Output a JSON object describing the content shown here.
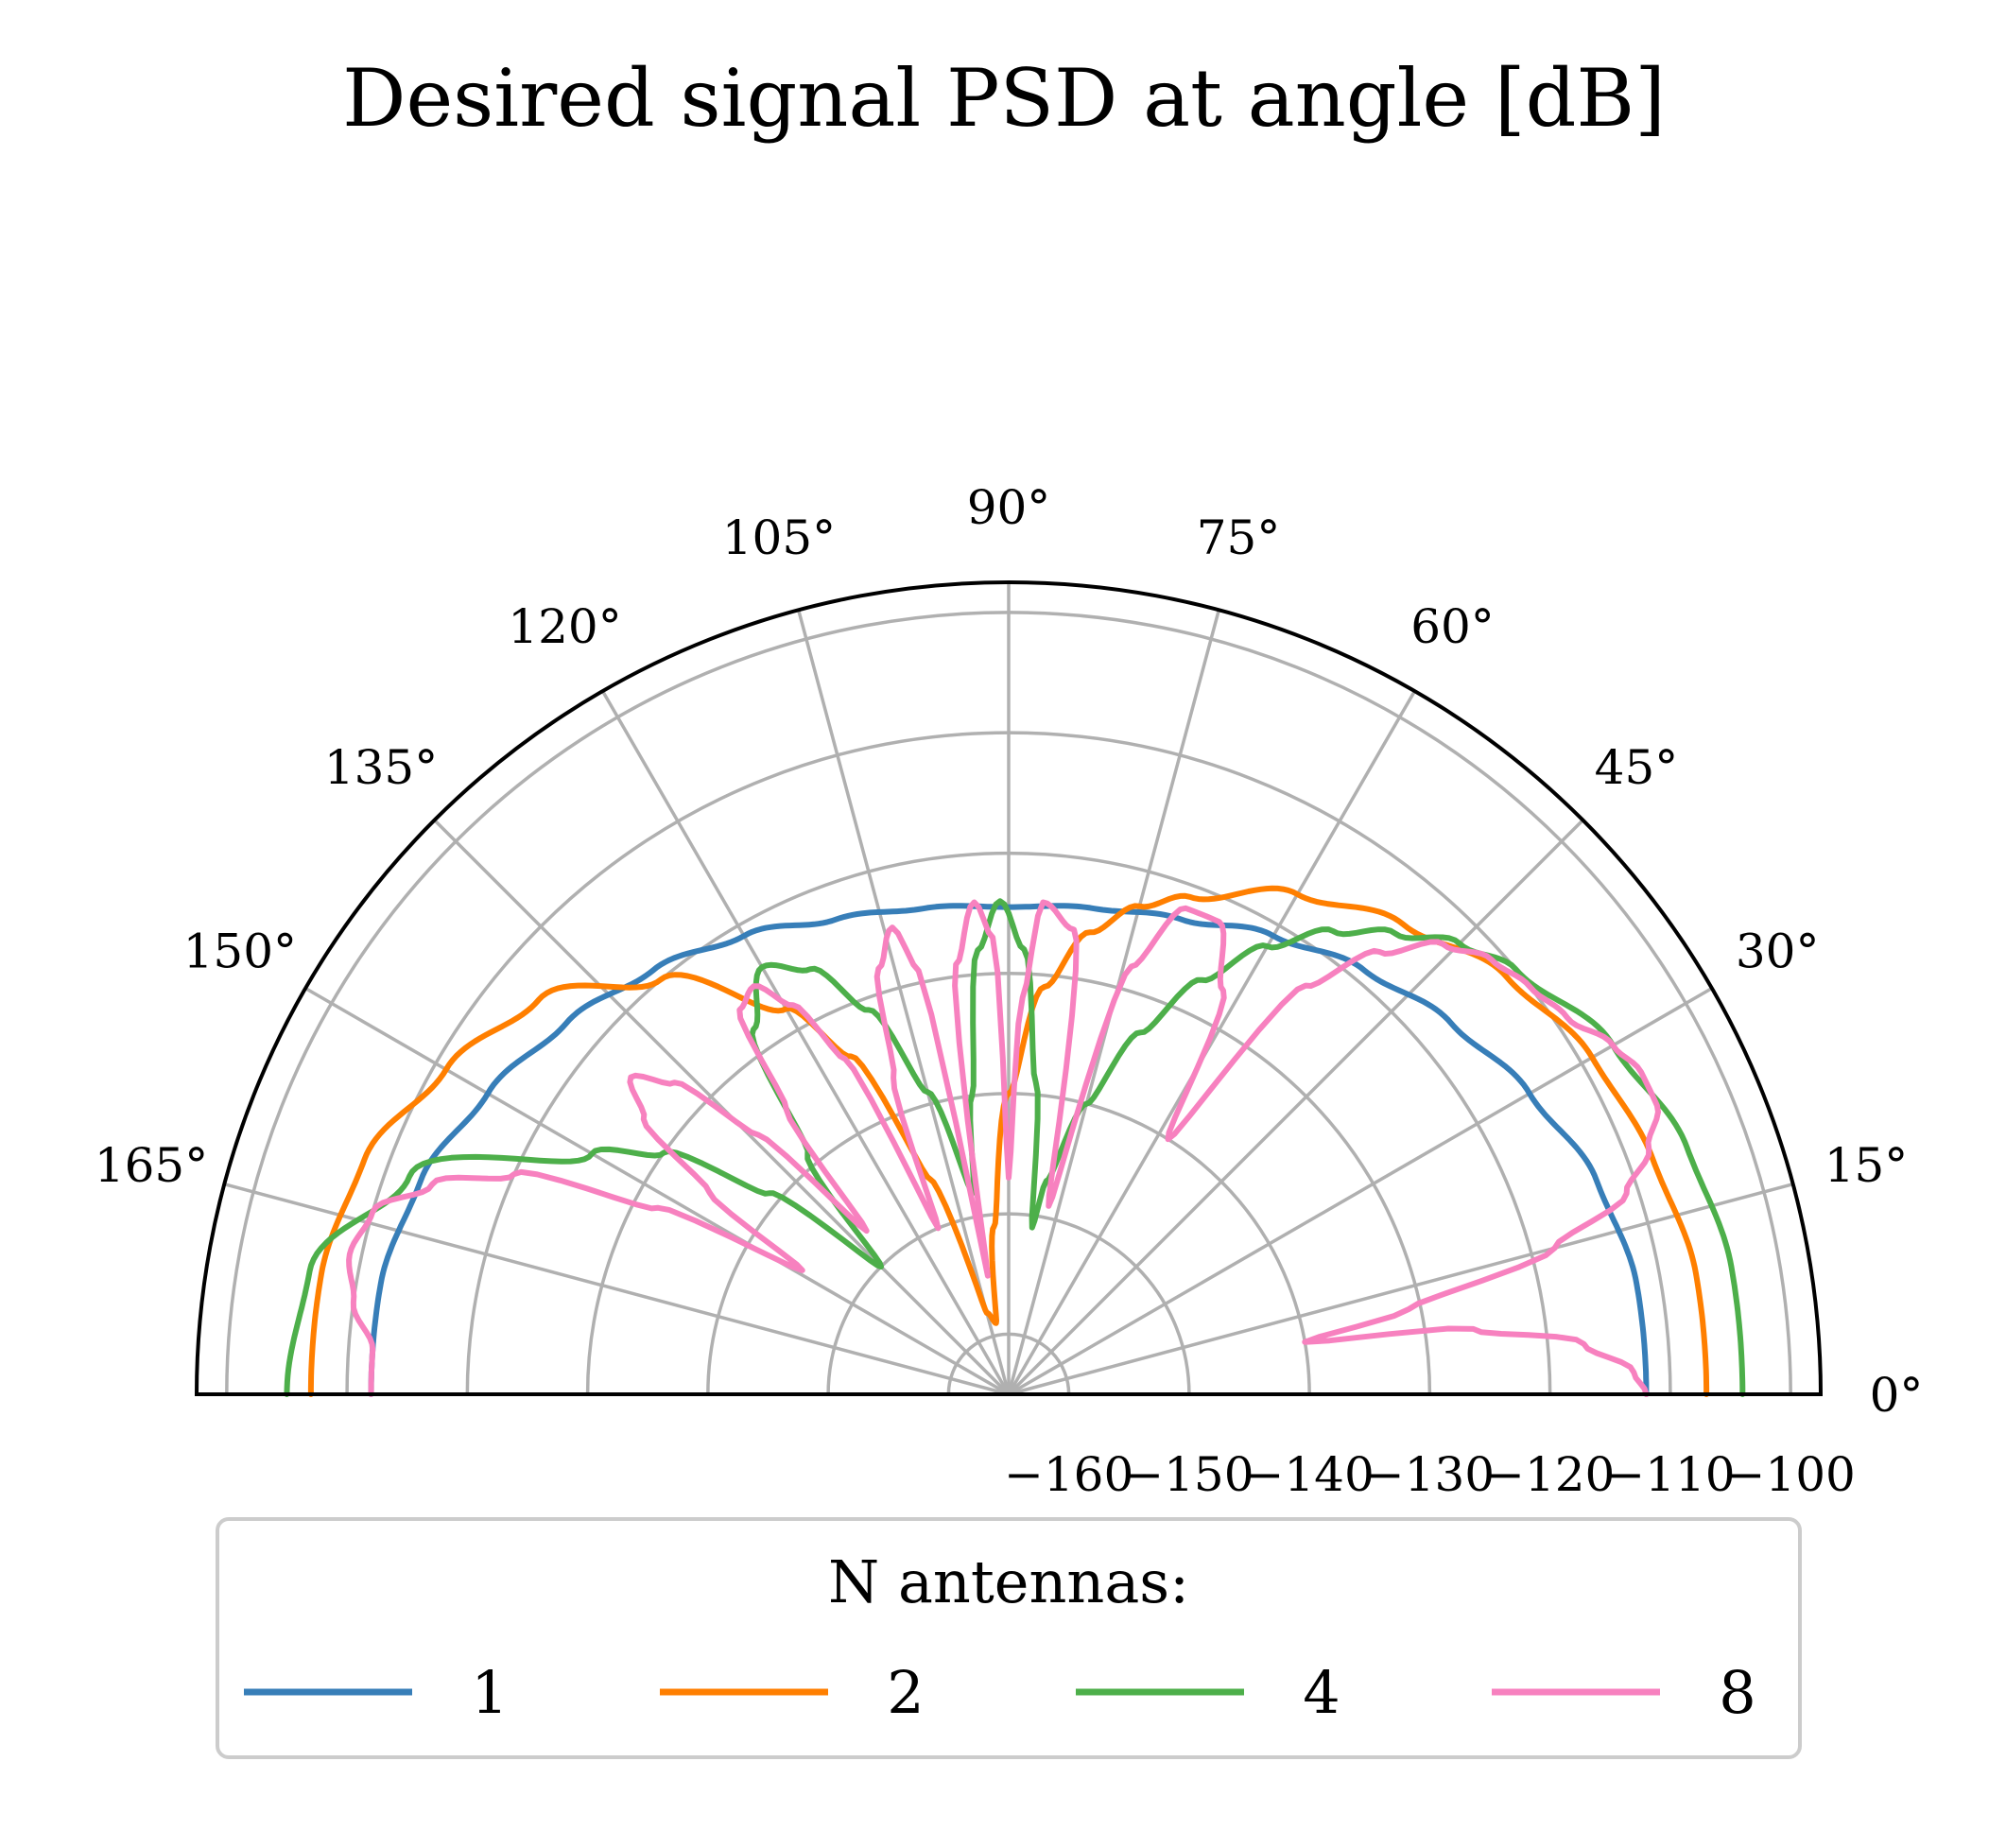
{
  "chart_data": {
    "type": "polar-line",
    "title": "Desired signal PSD at angle [dB]",
    "theta_unit": "degrees",
    "theta_range": [
      0,
      180
    ],
    "theta_ticks": [
      "0°",
      "15°",
      "30°",
      "45°",
      "60°",
      "75°",
      "90°",
      "105°",
      "120°",
      "135°",
      "150°",
      "165°"
    ],
    "theta_tick_values": [
      0,
      15,
      30,
      45,
      60,
      75,
      90,
      105,
      120,
      135,
      150,
      165
    ],
    "r_range": [
      -165,
      -97.5
    ],
    "r_ticks": [
      "−160",
      "−150",
      "−140",
      "−130",
      "−120",
      "−110",
      "−100"
    ],
    "r_tick_values": [
      -160,
      -150,
      -140,
      -130,
      -120,
      -110,
      -100
    ],
    "grid": true,
    "legend": {
      "title": "N antennas:",
      "position": "bottom",
      "columns": 4
    },
    "series": [
      {
        "name": "1",
        "color": "#377eb8",
        "style": "smooth",
        "theta": [
          0,
          10,
          20,
          30,
          40,
          50,
          60,
          70,
          80,
          90,
          100,
          110,
          120,
          130,
          140,
          150,
          160,
          170,
          180
        ],
        "r": [
          -112,
          -112,
          -113,
          -115,
          -117,
          -119,
          -121,
          -123,
          -124,
          -124.5,
          -124,
          -123,
          -121,
          -119,
          -117,
          -115,
          -113,
          -112,
          -112
        ]
      },
      {
        "name": "2",
        "color": "#ff7f00",
        "style": "smooth",
        "theta": [
          0,
          10,
          20,
          30,
          40,
          50,
          60,
          70,
          75,
          80,
          85,
          90,
          95,
          100,
          105,
          110,
          115,
          120,
          130,
          140,
          150,
          160,
          170,
          180
        ],
        "r": [
          -107,
          -107,
          -108,
          -109,
          -111,
          -114,
          -117,
          -121,
          -123,
          -126,
          -131,
          -140,
          -151,
          -159,
          -158,
          -146,
          -134,
          -128,
          -120,
          -114,
          -111,
          -108,
          -107,
          -107
        ]
      },
      {
        "name": "4",
        "color": "#4daf4a",
        "style": "smooth",
        "theta": [
          0,
          10,
          20,
          30,
          40,
          45,
          50,
          55,
          60,
          65,
          70,
          75,
          80,
          82,
          85,
          88,
          91,
          94,
          97,
          100,
          105,
          110,
          115,
          120,
          125,
          130,
          135,
          140,
          145,
          150,
          160,
          170,
          180
        ],
        "r": [
          -104,
          -104,
          -105,
          -107,
          -110,
          -112,
          -115,
          -118,
          -122,
          -127,
          -133,
          -140,
          -147,
          -151,
          -139,
          -128,
          -124,
          -128,
          -140,
          -148,
          -139,
          -131,
          -126,
          -124,
          -128,
          -139,
          -150,
          -139,
          -130,
          -125,
          -112,
          -106,
          -105
        ]
      },
      {
        "name": "8",
        "color": "#f781bf",
        "style": "smooth",
        "theta": [
          0,
          2,
          5,
          8,
          10,
          12,
          15,
          18,
          21,
          24,
          27,
          30,
          34,
          38,
          42,
          46,
          50,
          54,
          58,
          62,
          66,
          70,
          74,
          78,
          82,
          86,
          88,
          90,
          92,
          94,
          97,
          100,
          102,
          104,
          107,
          110,
          113,
          116,
          119,
          122,
          125,
          128,
          131,
          134,
          137,
          140,
          143,
          146,
          149,
          152,
          156,
          160,
          164,
          168,
          172,
          176,
          180
        ],
        "r": [
          -112,
          -113,
          -117,
          -126,
          -140,
          -131,
          -118,
          -111,
          -108,
          -106,
          -106,
          -107,
          -109,
          -110,
          -111,
          -113,
          -117,
          -123,
          -140,
          -127,
          -122,
          -122,
          -128,
          -149,
          -126,
          -124,
          -132,
          -147,
          -127,
          -124,
          -129,
          -155,
          -129,
          -125,
          -128,
          -137,
          -150,
          -134,
          -128,
          -125,
          -126,
          -135,
          -147,
          -135,
          -127,
          -124,
          -127,
          -135,
          -145,
          -132,
          -120,
          -114,
          -110,
          -109,
          -110,
          -112,
          -112
        ]
      }
    ]
  }
}
